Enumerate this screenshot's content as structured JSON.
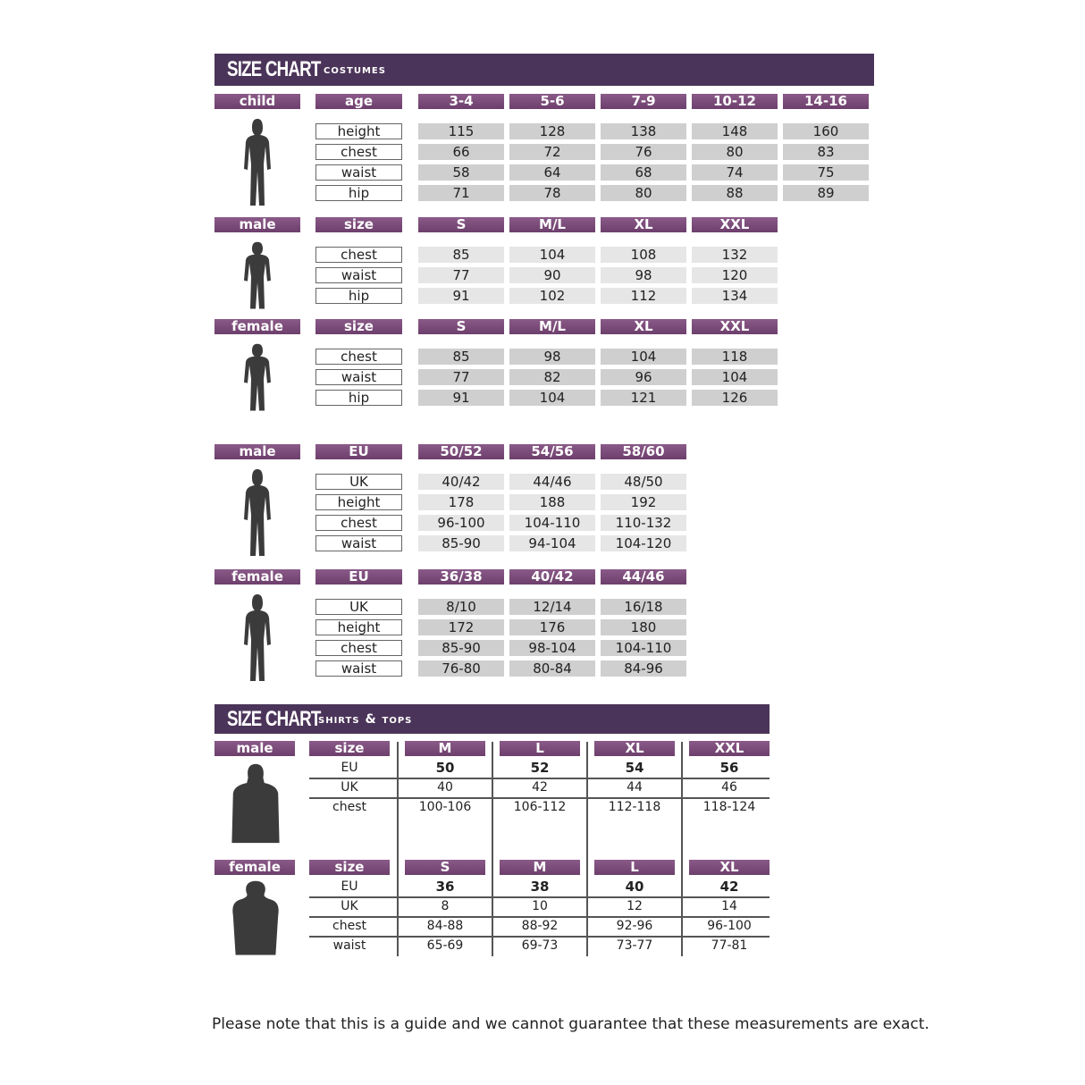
{
  "costumes": {
    "title": "SIZE CHART",
    "subtitle": "costumes",
    "sections": [
      {
        "group": "child",
        "key": "age",
        "figure": "child-silhouette",
        "cols": [
          "3-4",
          "5-6",
          "7-9",
          "10-12",
          "14-16"
        ],
        "light": false,
        "rows": [
          {
            "label": "height",
            "values": [
              "115",
              "128",
              "138",
              "148",
              "160"
            ]
          },
          {
            "label": "chest",
            "values": [
              "66",
              "72",
              "76",
              "80",
              "83"
            ]
          },
          {
            "label": "waist",
            "values": [
              "58",
              "64",
              "68",
              "74",
              "75"
            ]
          },
          {
            "label": "hip",
            "values": [
              "71",
              "78",
              "80",
              "88",
              "89"
            ]
          }
        ]
      },
      {
        "group": "male",
        "key": "size",
        "figure": "male-silhouette",
        "cols": [
          "S",
          "M/L",
          "XL",
          "XXL"
        ],
        "light": true,
        "rows": [
          {
            "label": "chest",
            "values": [
              "85",
              "104",
              "108",
              "132"
            ]
          },
          {
            "label": "waist",
            "values": [
              "77",
              "90",
              "98",
              "120"
            ]
          },
          {
            "label": "hip",
            "values": [
              "91",
              "102",
              "112",
              "134"
            ]
          }
        ]
      },
      {
        "group": "female",
        "key": "size",
        "figure": "female-silhouette",
        "cols": [
          "S",
          "M/L",
          "XL",
          "XXL"
        ],
        "light": false,
        "rows": [
          {
            "label": "chest",
            "values": [
              "85",
              "98",
              "104",
              "118"
            ]
          },
          {
            "label": "waist",
            "values": [
              "77",
              "82",
              "96",
              "104"
            ]
          },
          {
            "label": "hip",
            "values": [
              "91",
              "104",
              "121",
              "126"
            ]
          }
        ]
      },
      {
        "group": "male",
        "key": "EU",
        "figure": "male-silhouette",
        "cols": [
          "50/52",
          "54/56",
          "58/60"
        ],
        "light": true,
        "rows": [
          {
            "label": "UK",
            "values": [
              "40/42",
              "44/46",
              "48/50"
            ]
          },
          {
            "label": "height",
            "values": [
              "178",
              "188",
              "192"
            ]
          },
          {
            "label": "chest",
            "values": [
              "96-100",
              "104-110",
              "110-132"
            ]
          },
          {
            "label": "waist",
            "values": [
              "85-90",
              "94-104",
              "104-120"
            ]
          }
        ]
      },
      {
        "group": "female",
        "key": "EU",
        "figure": "female-silhouette",
        "cols": [
          "36/38",
          "40/42",
          "44/46"
        ],
        "light": false,
        "rows": [
          {
            "label": "UK",
            "values": [
              "8/10",
              "12/14",
              "16/18"
            ]
          },
          {
            "label": "height",
            "values": [
              "172",
              "176",
              "180"
            ]
          },
          {
            "label": "chest",
            "values": [
              "85-90",
              "98-104",
              "104-110"
            ]
          },
          {
            "label": "waist",
            "values": [
              "76-80",
              "80-84",
              "84-96"
            ]
          }
        ]
      }
    ]
  },
  "shirts": {
    "title": "SIZE CHART",
    "subtitle": "shirts & tops",
    "sections": [
      {
        "group": "male",
        "key": "size",
        "figure": "male-torso",
        "cols": [
          "M",
          "L",
          "XL",
          "XXL"
        ],
        "rows": [
          {
            "label": "EU",
            "values": [
              "50",
              "52",
              "54",
              "56"
            ],
            "bold": true
          },
          {
            "label": "UK",
            "values": [
              "40",
              "42",
              "44",
              "46"
            ]
          },
          {
            "label": "chest",
            "values": [
              "100-106",
              "106-112",
              "112-118",
              "118-124"
            ]
          }
        ]
      },
      {
        "group": "female",
        "key": "size",
        "figure": "female-torso",
        "cols": [
          "S",
          "M",
          "L",
          "XL"
        ],
        "rows": [
          {
            "label": "EU",
            "values": [
              "36",
              "38",
              "40",
              "42"
            ],
            "bold": true
          },
          {
            "label": "UK",
            "values": [
              "8",
              "10",
              "12",
              "14"
            ]
          },
          {
            "label": "chest",
            "values": [
              "84-88",
              "88-92",
              "92-96",
              "96-100"
            ]
          },
          {
            "label": "waist",
            "values": [
              "65-69",
              "69-73",
              "73-77",
              "77-81"
            ]
          }
        ]
      }
    ]
  },
  "footer": "Please note that this is a guide and we cannot guarantee that these measurements are exact.",
  "colors": {
    "header": "#4b3459",
    "subheader": "#7a4a78",
    "cell": "#cfcfcf",
    "cell_light": "#e6e6e6"
  }
}
